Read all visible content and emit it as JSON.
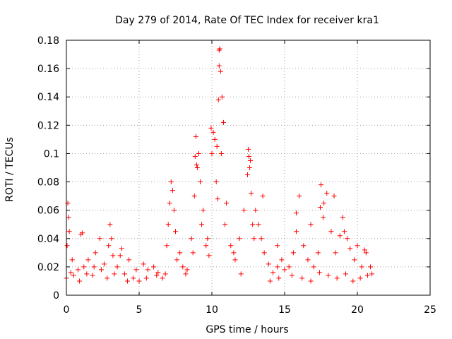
{
  "chart_data": {
    "type": "scatter",
    "title": "Day 279 of 2014, Rate Of TEC Index for receiver kra1",
    "xlabel": "GPS time / hours",
    "ylabel": "ROTI / TECUs",
    "xlim": [
      0,
      25
    ],
    "ylim": [
      0,
      0.18
    ],
    "xticks": [
      "0",
      "5",
      "10",
      "15",
      "20",
      "25"
    ],
    "xtick_values": [
      0,
      5,
      10,
      15,
      20,
      25
    ],
    "yticks": [
      "0",
      "0.02",
      "0.04",
      "0.06",
      "0.08",
      "0.1",
      "0.12",
      "0.14",
      "0.16",
      "0.18"
    ],
    "ytick_values": [
      0,
      0.02,
      0.04,
      0.06,
      0.08,
      0.1,
      0.12,
      0.14,
      0.16,
      0.18
    ],
    "grid": true,
    "marker": "+",
    "color": "#ff0000",
    "series": [
      {
        "name": "ROTI",
        "x": [
          0.0,
          0.05,
          0.1,
          0.15,
          0.2,
          0.3,
          0.5,
          0.8,
          1.0,
          1.2,
          1.5,
          1.8,
          2.0,
          2.3,
          2.6,
          2.9,
          3.0,
          3.2,
          3.5,
          3.8,
          4.0,
          4.3,
          4.6,
          5.0,
          5.3,
          5.6,
          6.0,
          6.3,
          6.6,
          6.9,
          7.0,
          7.1,
          7.2,
          7.3,
          7.4,
          7.5,
          7.8,
          8.0,
          8.3,
          8.6,
          8.8,
          8.9,
          9.0,
          9.1,
          9.2,
          9.4,
          9.6,
          9.8,
          10.0,
          10.1,
          10.2,
          10.3,
          10.4,
          10.5,
          10.6,
          10.7,
          10.8,
          11.0,
          11.3,
          11.6,
          11.9,
          12.2,
          12.5,
          12.6,
          12.7,
          12.8,
          13.0,
          13.2,
          13.4,
          13.6,
          13.9,
          14.2,
          14.5,
          14.8,
          15.0,
          15.3,
          15.6,
          15.8,
          16.0,
          16.3,
          16.6,
          17.0,
          17.3,
          17.5,
          17.7,
          17.9,
          18.2,
          18.5,
          18.8,
          19.0,
          19.3,
          19.5,
          19.8,
          20.0,
          20.3,
          20.6,
          20.9,
          21.0,
          0.4,
          0.9,
          1.4,
          1.9,
          2.4,
          2.8,
          3.3,
          3.7,
          4.2,
          4.8,
          5.5,
          6.2,
          6.8,
          7.6,
          8.2,
          8.7,
          9.3,
          9.7,
          10.9,
          11.5,
          12.0,
          12.9,
          13.5,
          14.0,
          14.6,
          15.5,
          16.2,
          16.8,
          17.4,
          18.0,
          18.6,
          19.2,
          19.7,
          20.2,
          20.7,
          10.55,
          10.5,
          10.45,
          10.35,
          9.95,
          8.85,
          8.95,
          10.65,
          12.55,
          12.65,
          12.45,
          16.8,
          17.45,
          17.65,
          18.4,
          15.8,
          14.5,
          19.1,
          20.5,
          3.1,
          1.1
        ],
        "y": [
          0.012,
          0.035,
          0.065,
          0.055,
          0.045,
          0.016,
          0.014,
          0.018,
          0.043,
          0.02,
          0.025,
          0.014,
          0.03,
          0.04,
          0.022,
          0.035,
          0.05,
          0.028,
          0.02,
          0.033,
          0.015,
          0.025,
          0.012,
          0.01,
          0.022,
          0.018,
          0.02,
          0.016,
          0.012,
          0.035,
          0.05,
          0.065,
          0.08,
          0.074,
          0.06,
          0.045,
          0.03,
          0.02,
          0.018,
          0.04,
          0.07,
          0.112,
          0.09,
          0.1,
          0.08,
          0.06,
          0.035,
          0.028,
          0.1,
          0.115,
          0.11,
          0.08,
          0.068,
          0.173,
          0.158,
          0.14,
          0.122,
          0.065,
          0.035,
          0.025,
          0.04,
          0.06,
          0.103,
          0.09,
          0.072,
          0.05,
          0.06,
          0.05,
          0.04,
          0.03,
          0.022,
          0.016,
          0.02,
          0.025,
          0.018,
          0.02,
          0.03,
          0.045,
          0.07,
          0.035,
          0.025,
          0.02,
          0.03,
          0.078,
          0.065,
          0.072,
          0.045,
          0.03,
          0.042,
          0.055,
          0.04,
          0.033,
          0.025,
          0.035,
          0.02,
          0.03,
          0.02,
          0.015,
          0.025,
          0.01,
          0.015,
          0.02,
          0.018,
          0.012,
          0.015,
          0.028,
          0.01,
          0.018,
          0.012,
          0.014,
          0.015,
          0.025,
          0.015,
          0.03,
          0.05,
          0.04,
          0.05,
          0.03,
          0.015,
          0.04,
          0.07,
          0.01,
          0.012,
          0.014,
          0.012,
          0.01,
          0.016,
          0.014,
          0.012,
          0.015,
          0.01,
          0.012,
          0.014,
          0.174,
          0.162,
          0.138,
          0.105,
          0.118,
          0.098,
          0.092,
          0.1,
          0.098,
          0.095,
          0.085,
          0.05,
          0.062,
          0.055,
          0.07,
          0.058,
          0.035,
          0.045,
          0.032,
          0.04,
          0.044
        ]
      }
    ]
  }
}
